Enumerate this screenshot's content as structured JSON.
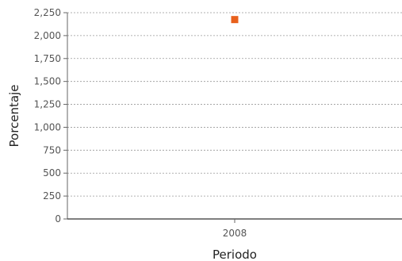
{
  "chart_data": {
    "type": "scatter",
    "title": "",
    "xlabel": "Periodo",
    "ylabel": "Porcentaje",
    "categories": [
      "2008"
    ],
    "series": [
      {
        "values": [
          2175
        ],
        "color": "#e8601c"
      }
    ],
    "ylim": [
      0,
      2250
    ],
    "yticks": [
      0,
      250,
      500,
      750,
      1000,
      1250,
      1500,
      1750,
      2000,
      2250
    ],
    "ytick_labels": [
      "0",
      "250",
      "500",
      "750",
      "1,000",
      "1,250",
      "1,500",
      "1,750",
      "2,000",
      "2,250"
    ],
    "grid": true,
    "legend": "none"
  }
}
